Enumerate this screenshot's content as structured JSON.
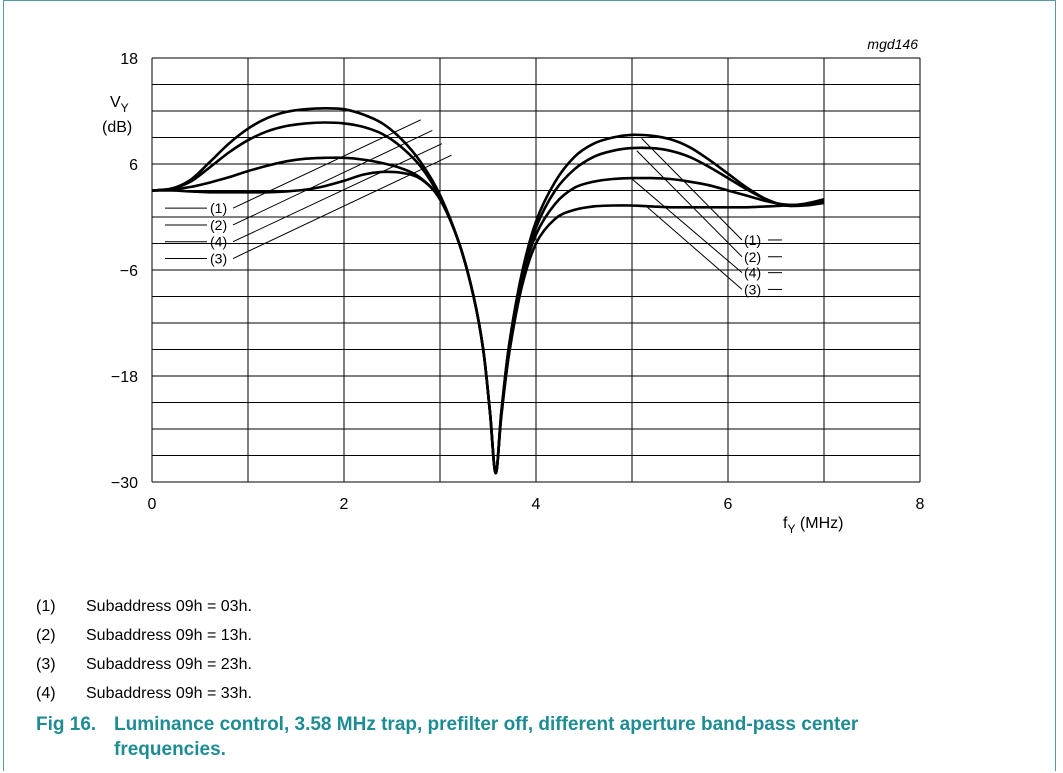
{
  "chart_data": {
    "type": "line",
    "code": "mgd146",
    "ylabel_main": "V",
    "ylabel_sub": "Y",
    "ylabel_unit": "(dB)",
    "xlabel_main": "f",
    "xlabel_sub": "Y",
    "xlabel_unit": " (MHz)",
    "xlim": [
      0,
      8
    ],
    "ylim": [
      -30,
      18
    ],
    "xticks": [
      0,
      2,
      4,
      6,
      8
    ],
    "xtick_labels": [
      "0",
      "2",
      "4",
      "6",
      "8"
    ],
    "yticks": [
      18,
      6,
      -6,
      -18,
      -30
    ],
    "ytick_labels": [
      "18",
      "6",
      "−6",
      "−18",
      "−30"
    ],
    "grid": true,
    "series": [
      {
        "name": "(1)",
        "x": [
          0,
          0.2,
          0.4,
          0.6,
          0.8,
          1.0,
          1.2,
          1.4,
          1.6,
          1.8,
          2.0,
          2.2,
          2.4,
          2.6,
          2.8,
          3.0,
          3.2,
          3.35,
          3.45,
          3.52,
          3.58,
          3.64,
          3.72,
          3.85,
          4.0,
          4.2,
          4.4,
          4.6,
          4.8,
          5.0,
          5.2,
          5.4,
          5.6,
          5.8,
          6.0,
          6.2,
          6.4,
          6.6,
          6.8,
          7.0
        ],
        "y": [
          3.0,
          3.2,
          4.2,
          6.2,
          8.3,
          10.0,
          11.2,
          11.9,
          12.2,
          12.3,
          12.2,
          11.6,
          10.6,
          8.8,
          6.2,
          2.5,
          -3.0,
          -9.0,
          -15.0,
          -22.0,
          -29.0,
          -22.0,
          -14.5,
          -6.5,
          -0.5,
          4.0,
          6.8,
          8.3,
          9.0,
          9.3,
          9.2,
          8.8,
          7.9,
          6.5,
          4.9,
          3.3,
          2.0,
          1.3,
          1.4,
          1.9
        ]
      },
      {
        "name": "(2)",
        "x": [
          0,
          0.2,
          0.4,
          0.6,
          0.8,
          1.0,
          1.2,
          1.4,
          1.6,
          1.8,
          2.0,
          2.2,
          2.4,
          2.6,
          2.8,
          3.0,
          3.2,
          3.35,
          3.45,
          3.52,
          3.58,
          3.64,
          3.72,
          3.85,
          4.0,
          4.2,
          4.4,
          4.6,
          4.8,
          5.0,
          5.2,
          5.4,
          5.6,
          5.8,
          6.0,
          6.2,
          6.4,
          6.6,
          6.8,
          7.0
        ],
        "y": [
          3.0,
          3.2,
          4.0,
          5.6,
          7.3,
          8.7,
          9.7,
          10.3,
          10.6,
          10.7,
          10.6,
          10.2,
          9.4,
          7.9,
          5.7,
          2.2,
          -3.0,
          -9.0,
          -15.0,
          -22.0,
          -29.0,
          -22.0,
          -14.5,
          -6.8,
          -1.2,
          3.0,
          5.4,
          6.8,
          7.5,
          7.8,
          7.8,
          7.5,
          6.8,
          5.7,
          4.4,
          3.1,
          2.0,
          1.3,
          1.3,
          1.6
        ]
      },
      {
        "name": "(3)",
        "x": [
          0,
          0.2,
          0.4,
          0.6,
          0.8,
          1.0,
          1.2,
          1.4,
          1.6,
          1.8,
          2.0,
          2.2,
          2.4,
          2.6,
          2.8,
          3.0,
          3.2,
          3.35,
          3.45,
          3.52,
          3.58,
          3.64,
          3.72,
          3.85,
          4.0,
          4.2,
          4.4,
          4.6,
          4.8,
          5.0,
          5.2,
          5.4,
          5.6,
          5.8,
          6.0,
          6.2,
          6.4,
          6.6,
          6.8,
          7.0
        ],
        "y": [
          3.0,
          3.0,
          2.9,
          2.8,
          2.8,
          2.8,
          2.8,
          2.9,
          3.1,
          3.5,
          4.1,
          4.8,
          5.1,
          5.0,
          4.3,
          2.0,
          -3.0,
          -9.0,
          -15.0,
          -22.0,
          -29.0,
          -22.5,
          -15.5,
          -8.0,
          -3.0,
          -0.2,
          0.8,
          1.2,
          1.3,
          1.3,
          1.2,
          1.1,
          1.1,
          1.1,
          1.1,
          1.1,
          1.2,
          1.3,
          1.5,
          2.0
        ]
      },
      {
        "name": "(4)",
        "x": [
          0,
          0.2,
          0.4,
          0.6,
          0.8,
          1.0,
          1.2,
          1.4,
          1.6,
          1.8,
          2.0,
          2.2,
          2.4,
          2.6,
          2.8,
          3.0,
          3.2,
          3.35,
          3.45,
          3.52,
          3.58,
          3.64,
          3.72,
          3.85,
          4.0,
          4.2,
          4.4,
          4.6,
          4.8,
          5.0,
          5.2,
          5.4,
          5.6,
          5.8,
          6.0,
          6.2,
          6.4,
          6.6,
          6.8,
          7.0
        ],
        "y": [
          3.0,
          3.1,
          3.4,
          3.9,
          4.5,
          5.2,
          5.8,
          6.3,
          6.6,
          6.7,
          6.7,
          6.5,
          6.1,
          5.5,
          4.4,
          2.0,
          -3.0,
          -9.0,
          -15.0,
          -22.0,
          -29.0,
          -22.2,
          -15.0,
          -7.2,
          -2.0,
          1.5,
          3.3,
          4.0,
          4.3,
          4.4,
          4.4,
          4.3,
          4.0,
          3.6,
          3.0,
          2.4,
          1.8,
          1.4,
          1.4,
          1.6
        ]
      }
    ],
    "annotations_left": [
      {
        "label": "(1)",
        "y": 1.0,
        "x_end": 2.8,
        "y_end": 11.0
      },
      {
        "label": "(2)",
        "y": -0.9,
        "x_end": 2.92,
        "y_end": 9.8
      },
      {
        "label": "(4)",
        "y": -2.8,
        "x_end": 3.02,
        "y_end": 8.3
      },
      {
        "label": "(3)",
        "y": -4.7,
        "x_end": 3.12,
        "y_end": 7.0
      }
    ],
    "annotations_right": [
      {
        "label": "(1)",
        "y": -2.6,
        "x_end": 5.1,
        "y_end": 8.9
      },
      {
        "label": "(2)",
        "y": -4.5,
        "x_end": 5.05,
        "y_end": 7.5
      },
      {
        "label": "(4)",
        "y": -6.3,
        "x_end": 5.0,
        "y_end": 4.3
      },
      {
        "label": "(3)",
        "y": -8.2,
        "x_end": 5.15,
        "y_end": 1.2
      }
    ]
  },
  "legend": [
    {
      "num": "(1)",
      "text": "Subaddress 09h = 03h."
    },
    {
      "num": "(2)",
      "text": "Subaddress 09h = 13h."
    },
    {
      "num": "(3)",
      "text": "Subaddress 09h = 23h."
    },
    {
      "num": "(4)",
      "text": "Subaddress 09h = 33h."
    }
  ],
  "caption": {
    "fig": "Fig 16.",
    "line1": "Luminance control, 3.58 MHz trap, prefilter off, different aperture band-pass center",
    "line2": "frequencies."
  }
}
